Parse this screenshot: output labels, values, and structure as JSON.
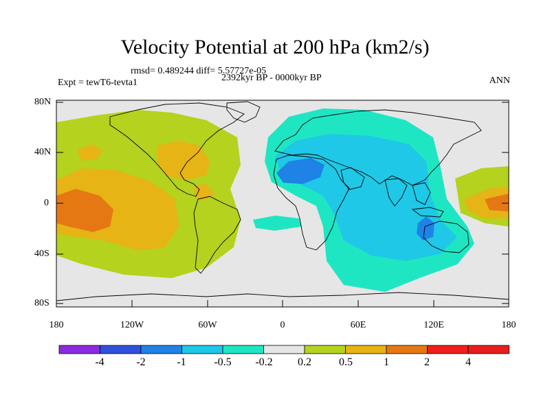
{
  "title": "Velocity Potential at 200 hPa (km2/s)",
  "stats": {
    "rmsd_label": "rmsd= 0.489244 diff= 5.57727e-05"
  },
  "experiment": "Expt = tewT6-tevta1",
  "period": "2392kyr BP - 0000kyr BP",
  "season": "ANN",
  "axes": {
    "lat_labels": [
      "80N",
      "40N",
      "0",
      "40S",
      "80S"
    ],
    "lon_labels": [
      "180",
      "120W",
      "60W",
      "0",
      "60E",
      "120E",
      "180"
    ]
  },
  "colorbar": {
    "labels": [
      "-4",
      "-2",
      "-1",
      "-0.5",
      "-0.2",
      "0.2",
      "0.5",
      "1",
      "2",
      "4"
    ],
    "colors": [
      "#8a2be2",
      "#3050dc",
      "#1e82e6",
      "#1ec8e6",
      "#1ee6c3",
      "#e6e6e6",
      "#b4d21e",
      "#e6b414",
      "#e67814",
      "#f01e1e",
      "#e61e1e"
    ]
  },
  "map_colors": {
    "neutral": "#e6e6e6",
    "pos_weak": "#b4d21e",
    "pos_mid": "#e6b414",
    "pos_strong": "#e67814",
    "neg_weak": "#1ee6c3",
    "neg_mid": "#1ec8e6",
    "neg_strong": "#1e82e6"
  }
}
